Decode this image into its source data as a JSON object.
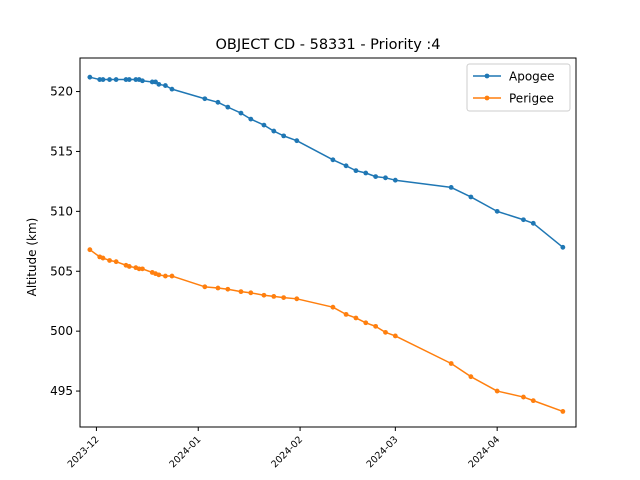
{
  "chart_data": {
    "type": "line",
    "title": "OBJECT CD - 58331 - Priority :4",
    "xlabel": "",
    "ylabel": "Altitude (km)",
    "ylim": [
      492.0,
      522.8
    ],
    "xlim": [
      "2023-11-26",
      "2024-04-25"
    ],
    "x_ticks": [
      "2023-12",
      "2024-01",
      "2024-02",
      "2024-03",
      "2024-04"
    ],
    "y_ticks": [
      495,
      500,
      505,
      510,
      515,
      520
    ],
    "grid": false,
    "legend_position": "upper right",
    "series": [
      {
        "name": "Apogee",
        "color": "#1f77b4",
        "points": [
          [
            "2023-11-29",
            521.2
          ],
          [
            "2023-12-02",
            521.0
          ],
          [
            "2023-12-03",
            521.0
          ],
          [
            "2023-12-05",
            521.0
          ],
          [
            "2023-12-07",
            521.0
          ],
          [
            "2023-12-10",
            521.0
          ],
          [
            "2023-12-11",
            521.0
          ],
          [
            "2023-12-13",
            521.0
          ],
          [
            "2023-12-14",
            521.0
          ],
          [
            "2023-12-15",
            520.9
          ],
          [
            "2023-12-18",
            520.8
          ],
          [
            "2023-12-19",
            520.8
          ],
          [
            "2023-12-20",
            520.6
          ],
          [
            "2023-12-22",
            520.5
          ],
          [
            "2023-12-24",
            520.2
          ],
          [
            "2024-01-03",
            519.4
          ],
          [
            "2024-01-07",
            519.1
          ],
          [
            "2024-01-10",
            518.7
          ],
          [
            "2024-01-14",
            518.2
          ],
          [
            "2024-01-17",
            517.7
          ],
          [
            "2024-01-21",
            517.2
          ],
          [
            "2024-01-24",
            516.7
          ],
          [
            "2024-01-27",
            516.3
          ],
          [
            "2024-01-31",
            515.9
          ],
          [
            "2024-02-11",
            514.3
          ],
          [
            "2024-02-15",
            513.8
          ],
          [
            "2024-02-18",
            513.4
          ],
          [
            "2024-02-21",
            513.2
          ],
          [
            "2024-02-24",
            512.9
          ],
          [
            "2024-02-27",
            512.8
          ],
          [
            "2024-03-01",
            512.6
          ],
          [
            "2024-03-18",
            512.0
          ],
          [
            "2024-03-24",
            511.2
          ],
          [
            "2024-04-01",
            510.0
          ],
          [
            "2024-04-09",
            509.3
          ],
          [
            "2024-04-12",
            509.0
          ],
          [
            "2024-04-21",
            507.0
          ]
        ]
      },
      {
        "name": "Perigee",
        "color": "#ff7f0e",
        "points": [
          [
            "2023-11-29",
            506.8
          ],
          [
            "2023-12-02",
            506.2
          ],
          [
            "2023-12-03",
            506.1
          ],
          [
            "2023-12-05",
            505.9
          ],
          [
            "2023-12-07",
            505.8
          ],
          [
            "2023-12-10",
            505.5
          ],
          [
            "2023-12-11",
            505.4
          ],
          [
            "2023-12-13",
            505.3
          ],
          [
            "2023-12-14",
            505.2
          ],
          [
            "2023-12-15",
            505.2
          ],
          [
            "2023-12-18",
            504.9
          ],
          [
            "2023-12-19",
            504.8
          ],
          [
            "2023-12-20",
            504.7
          ],
          [
            "2023-12-22",
            504.6
          ],
          [
            "2023-12-24",
            504.6
          ],
          [
            "2024-01-03",
            503.7
          ],
          [
            "2024-01-07",
            503.6
          ],
          [
            "2024-01-10",
            503.5
          ],
          [
            "2024-01-14",
            503.3
          ],
          [
            "2024-01-17",
            503.2
          ],
          [
            "2024-01-21",
            503.0
          ],
          [
            "2024-01-24",
            502.9
          ],
          [
            "2024-01-27",
            502.8
          ],
          [
            "2024-01-31",
            502.7
          ],
          [
            "2024-02-11",
            502.0
          ],
          [
            "2024-02-15",
            501.4
          ],
          [
            "2024-02-18",
            501.1
          ],
          [
            "2024-02-21",
            500.7
          ],
          [
            "2024-02-24",
            500.4
          ],
          [
            "2024-02-27",
            499.9
          ],
          [
            "2024-03-01",
            499.6
          ],
          [
            "2024-03-18",
            497.3
          ],
          [
            "2024-03-24",
            496.2
          ],
          [
            "2024-04-01",
            495.0
          ],
          [
            "2024-04-09",
            494.5
          ],
          [
            "2024-04-12",
            494.2
          ],
          [
            "2024-04-21",
            493.3
          ]
        ]
      }
    ]
  }
}
